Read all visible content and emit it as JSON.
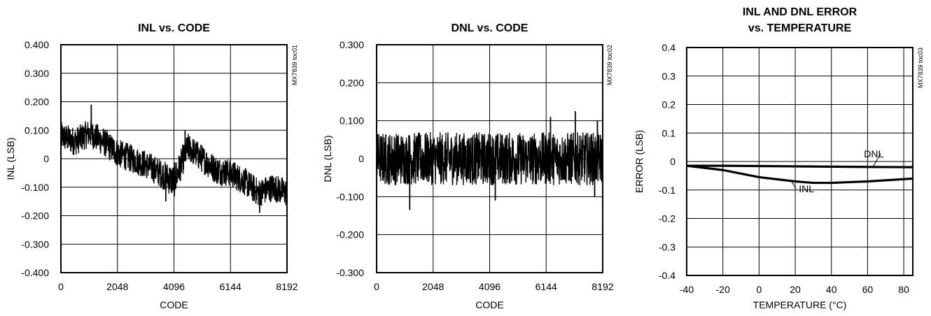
{
  "chart_data": [
    {
      "type": "line",
      "title": "INL vs. CODE",
      "title_lines": [
        "INL vs. CODE"
      ],
      "xlabel": "CODE",
      "ylabel": "INL (LSB)",
      "side_label": "MX7839 toc01",
      "xlim": [
        0,
        8192
      ],
      "ylim": [
        -0.4,
        0.4
      ],
      "x_ticks": [
        0,
        2048,
        4096,
        6144,
        8192
      ],
      "x_tick_labels": [
        "0",
        "2048",
        "4096",
        "6144",
        "8192"
      ],
      "y_ticks": [
        0.4,
        0.3,
        0.2,
        0.1,
        0,
        -0.1,
        -0.2,
        -0.3,
        -0.4
      ],
      "y_tick_labels": [
        "0.400",
        "0.300",
        "0.200",
        "0.100",
        "0",
        "-0.100",
        "-0.200",
        "-0.300",
        "-0.400"
      ],
      "grid": true,
      "series": [
        {
          "x": [
            0,
            512,
            1024,
            1536,
            2048,
            2560,
            3072,
            3584,
            4096,
            4608,
            5120,
            5632,
            6144,
            6656,
            7168,
            7680,
            8192
          ],
          "y": [
            0.08,
            0.06,
            0.09,
            0.06,
            0.02,
            0.0,
            -0.02,
            -0.05,
            -0.08,
            0.04,
            0.0,
            -0.04,
            -0.05,
            -0.08,
            -0.12,
            -0.1,
            -0.12
          ],
          "band": [
            0.05,
            0.05,
            0.05,
            0.05,
            0.05,
            0.05,
            0.05,
            0.05,
            0.06,
            0.05,
            0.05,
            0.05,
            0.05,
            0.05,
            0.05,
            0.05,
            0.05
          ],
          "spikes": [
            [
              1100,
              0.19
            ],
            [
              4500,
              0.1
            ],
            [
              7200,
              -0.19
            ],
            [
              3800,
              -0.15
            ]
          ],
          "color": "#000000"
        }
      ]
    },
    {
      "type": "line",
      "title": "DNL vs. CODE",
      "title_lines": [
        "DNL vs. CODE"
      ],
      "xlabel": "CODE",
      "ylabel": "DNL (LSB)",
      "side_label": "MX7839 toc02",
      "xlim": [
        0,
        8192
      ],
      "ylim": [
        -0.3,
        0.3
      ],
      "x_ticks": [
        0,
        2048,
        4096,
        6144,
        8192
      ],
      "x_tick_labels": [
        "0",
        "2048",
        "4096",
        "6144",
        "8192"
      ],
      "y_ticks": [
        0.3,
        0.2,
        0.1,
        0,
        -0.1,
        -0.2,
        -0.3
      ],
      "y_tick_labels": [
        "0.300",
        "0.200",
        "0.100",
        "0",
        "-0.100",
        "-0.200",
        "-0.300"
      ],
      "grid": true,
      "series": [
        {
          "x": [
            0,
            1024,
            2048,
            3072,
            4096,
            5120,
            6144,
            7168,
            8192
          ],
          "y": [
            0.0,
            0.0,
            0.0,
            0.0,
            0.0,
            0.0,
            0.0,
            0.0,
            0.0
          ],
          "band": [
            0.07,
            0.07,
            0.07,
            0.07,
            0.07,
            0.07,
            0.07,
            0.07,
            0.07
          ],
          "spikes": [
            [
              1200,
              -0.135
            ],
            [
              4300,
              -0.11
            ],
            [
              6300,
              0.11
            ],
            [
              7200,
              0.125
            ],
            [
              8000,
              0.1
            ],
            [
              7900,
              -0.1
            ]
          ],
          "color": "#000000"
        }
      ]
    },
    {
      "type": "line",
      "title": "INL AND DNL ERROR vs. TEMPERATURE",
      "title_lines": [
        "INL AND DNL ERROR",
        "vs. TEMPERATURE"
      ],
      "xlabel": "TEMPERATURE (°C)",
      "ylabel": "ERROR (LSB)",
      "side_label": "MX7839 toc03",
      "xlim": [
        -40,
        85
      ],
      "ylim": [
        -0.4,
        0.4
      ],
      "x_ticks": [
        -40,
        -20,
        0,
        20,
        40,
        60,
        80
      ],
      "x_tick_labels": [
        "-40",
        "-20",
        "0",
        "20",
        "40",
        "60",
        "80"
      ],
      "y_ticks": [
        0.4,
        0.3,
        0.2,
        0.1,
        0,
        -0.1,
        -0.2,
        -0.3,
        -0.4
      ],
      "y_tick_labels": [
        "0.4",
        "0.3",
        "0.2",
        "0.1",
        "0",
        "-0.1",
        "-0.2",
        "-0.3",
        "-0.4"
      ],
      "grid": true,
      "series": [
        {
          "name": "DNL",
          "x": [
            -40,
            -20,
            0,
            20,
            40,
            60,
            85
          ],
          "y": [
            -0.015,
            -0.015,
            -0.016,
            -0.017,
            -0.018,
            -0.019,
            -0.02
          ],
          "color": "#000000"
        },
        {
          "name": "INL",
          "x": [
            -40,
            -20,
            0,
            20,
            30,
            40,
            60,
            85
          ],
          "y": [
            -0.015,
            -0.03,
            -0.055,
            -0.07,
            -0.075,
            -0.075,
            -0.07,
            -0.06
          ],
          "color": "#000000"
        }
      ],
      "annotations": [
        {
          "text": "DNL",
          "x": 58,
          "y": 0.015,
          "to_x": 63,
          "to_y": -0.018
        },
        {
          "text": "INL",
          "x": 22,
          "y": -0.108,
          "to_x": 18,
          "to_y": -0.07
        }
      ]
    }
  ]
}
